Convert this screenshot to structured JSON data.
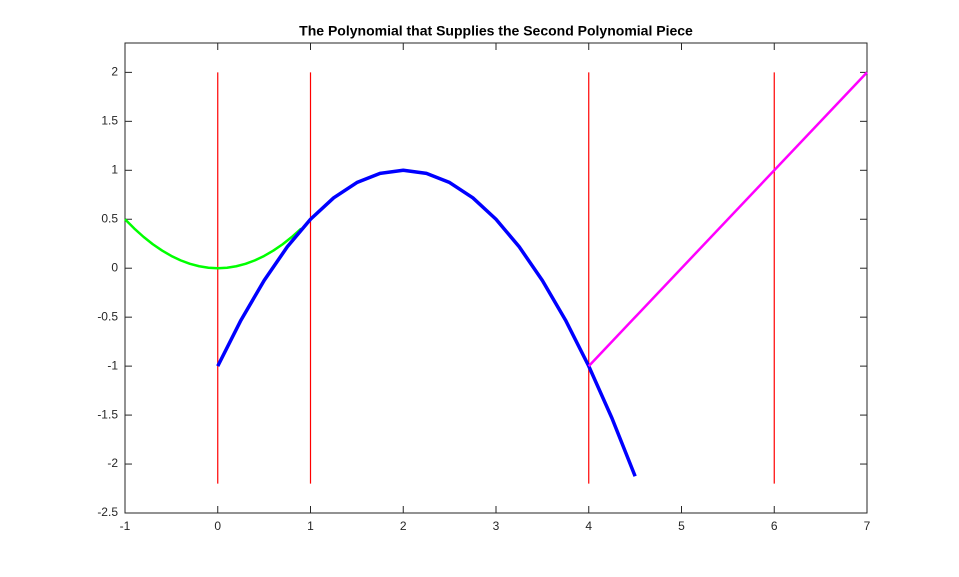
{
  "chart_data": {
    "type": "line",
    "title": "The Polynomial that Supplies the Second Polynomial Piece",
    "xlim": [
      -1,
      7
    ],
    "ylim": [
      -2.5,
      2.3
    ],
    "xticks": [
      -1,
      0,
      1,
      2,
      3,
      4,
      5,
      6,
      7
    ],
    "yticks": [
      -2.5,
      -2,
      -1.5,
      -1,
      -0.5,
      0,
      0.5,
      1,
      1.5,
      2
    ],
    "grid": false,
    "series": [
      {
        "color": "#ff0000",
        "x": [
          0,
          0
        ],
        "values": [
          -2.2,
          2
        ]
      },
      {
        "color": "#ff0000",
        "x": [
          1,
          1
        ],
        "values": [
          -2.2,
          2
        ]
      },
      {
        "color": "#ff0000",
        "x": [
          4,
          4
        ],
        "values": [
          -2.2,
          2
        ]
      },
      {
        "color": "#ff0000",
        "x": [
          6,
          6
        ],
        "values": [
          -2.2,
          2
        ]
      },
      {
        "color": "#00ff00",
        "x": [
          -1,
          -0.9,
          -0.8,
          -0.7,
          -0.6,
          -0.5,
          -0.4,
          -0.3,
          -0.2,
          -0.1,
          0,
          0.1,
          0.2,
          0.3,
          0.4,
          0.5,
          0.6,
          0.7,
          0.8,
          0.9
        ],
        "values": [
          0.5,
          0.405,
          0.32,
          0.245,
          0.18,
          0.125,
          0.08,
          0.045,
          0.02,
          0.005,
          0,
          0.005,
          0.02,
          0.045,
          0.08,
          0.125,
          0.18,
          0.245,
          0.32,
          0.405
        ]
      },
      {
        "color": "#0000ff",
        "x": [
          0,
          0.25,
          0.5,
          0.75,
          1,
          1.25,
          1.5,
          1.75,
          2,
          2.25,
          2.5,
          2.75,
          3,
          3.25,
          3.5,
          3.75,
          4,
          4.25,
          4.5
        ],
        "values": [
          -1,
          -0.53125,
          -0.125,
          0.21875,
          0.5,
          0.71875,
          0.875,
          0.96875,
          1,
          0.96875,
          0.875,
          0.71875,
          0.5,
          0.21875,
          -0.125,
          -0.53125,
          -1,
          -1.53125,
          -2.125
        ]
      },
      {
        "color": "#ff00ff",
        "x": [
          4,
          7
        ],
        "values": [
          -1,
          2
        ]
      }
    ]
  }
}
